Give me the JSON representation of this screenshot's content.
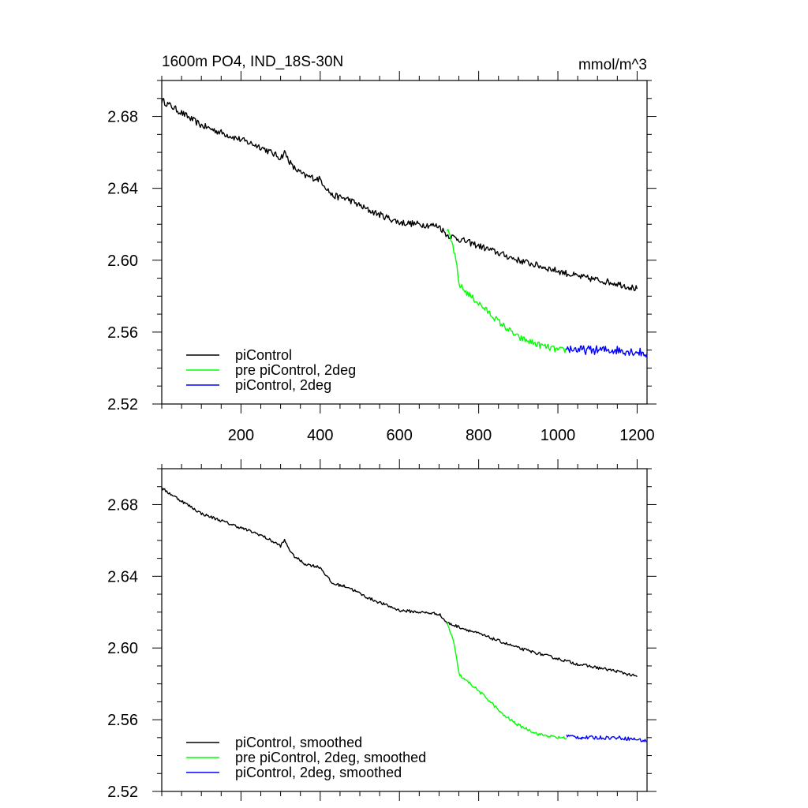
{
  "chart_data": [
    {
      "type": "line",
      "title": "1600m PO4, IND_18S-30N",
      "units": "mmol/m^3",
      "xlim": [
        0,
        1225
      ],
      "ylim": [
        2.52,
        2.7
      ],
      "x_ticks": [
        200,
        400,
        600,
        800,
        1000,
        1200
      ],
      "x_tick_labels": [
        "200",
        "400",
        "600",
        "800",
        "1000",
        "1200"
      ],
      "y_ticks": [
        2.52,
        2.56,
        2.6,
        2.64,
        2.68
      ],
      "y_tick_labels": [
        "2.52",
        "2.56",
        "2.60",
        "2.64",
        "2.68"
      ],
      "legend_position": "bottom-left",
      "series": [
        {
          "name": "piControl",
          "color": "#000000",
          "noise": 0.0018,
          "x": [
            0,
            50,
            100,
            150,
            200,
            250,
            300,
            310,
            330,
            360,
            400,
            430,
            470,
            520,
            600,
            650,
            700,
            720,
            760,
            800,
            850,
            900,
            950,
            1000,
            1050,
            1100,
            1150,
            1200
          ],
          "values": [
            2.689,
            2.682,
            2.675,
            2.671,
            2.667,
            2.663,
            2.657,
            2.66,
            2.652,
            2.647,
            2.645,
            2.636,
            2.634,
            2.628,
            2.621,
            2.62,
            2.619,
            2.614,
            2.611,
            2.608,
            2.604,
            2.6,
            2.597,
            2.594,
            2.591,
            2.589,
            2.587,
            2.584
          ]
        },
        {
          "name": "pre piControl, 2deg",
          "color": "#00ff00",
          "noise": 0.0018,
          "x": [
            720,
            735,
            745,
            750,
            760,
            780,
            800,
            830,
            860,
            900,
            950,
            1000,
            1022
          ],
          "values": [
            2.617,
            2.608,
            2.596,
            2.587,
            2.584,
            2.58,
            2.576,
            2.57,
            2.564,
            2.557,
            2.553,
            2.55,
            2.55
          ]
        },
        {
          "name": "piControl, 2deg",
          "color": "#0000ff",
          "noise": 0.0025,
          "x": [
            1022,
            1060,
            1100,
            1150,
            1200,
            1225
          ],
          "values": [
            2.551,
            2.55,
            2.55,
            2.55,
            2.549,
            2.548
          ]
        }
      ]
    },
    {
      "type": "line",
      "xlim": [
        0,
        1225
      ],
      "ylim": [
        2.52,
        2.7
      ],
      "x_ticks": [
        200,
        400,
        600,
        800,
        1000,
        1200
      ],
      "y_ticks": [
        2.52,
        2.56,
        2.6,
        2.64,
        2.68
      ],
      "y_tick_labels": [
        "2.52",
        "2.56",
        "2.60",
        "2.64",
        "2.68"
      ],
      "legend_position": "bottom-left",
      "series": [
        {
          "name": "piControl, smoothed",
          "color": "#000000",
          "noise": 0.0008,
          "x": [
            0,
            50,
            100,
            150,
            200,
            250,
            300,
            310,
            330,
            360,
            400,
            430,
            470,
            520,
            600,
            650,
            700,
            720,
            760,
            800,
            850,
            900,
            950,
            1000,
            1050,
            1100,
            1150,
            1200
          ],
          "values": [
            2.689,
            2.682,
            2.675,
            2.671,
            2.667,
            2.663,
            2.657,
            2.66,
            2.652,
            2.647,
            2.645,
            2.636,
            2.634,
            2.628,
            2.621,
            2.62,
            2.619,
            2.614,
            2.611,
            2.608,
            2.604,
            2.6,
            2.597,
            2.594,
            2.591,
            2.589,
            2.587,
            2.584
          ]
        },
        {
          "name": "pre piControl, 2deg, smoothed",
          "color": "#00ff00",
          "noise": 0.0008,
          "x": [
            720,
            735,
            745,
            750,
            760,
            780,
            800,
            830,
            860,
            900,
            950,
            1000,
            1022
          ],
          "values": [
            2.614,
            2.605,
            2.593,
            2.586,
            2.583,
            2.58,
            2.576,
            2.57,
            2.563,
            2.557,
            2.552,
            2.55,
            2.55
          ]
        },
        {
          "name": "piControl, 2deg, smoothed",
          "color": "#0000ff",
          "noise": 0.001,
          "x": [
            1022,
            1060,
            1100,
            1150,
            1200,
            1225
          ],
          "values": [
            2.551,
            2.55,
            2.55,
            2.55,
            2.549,
            2.548
          ]
        }
      ]
    }
  ]
}
